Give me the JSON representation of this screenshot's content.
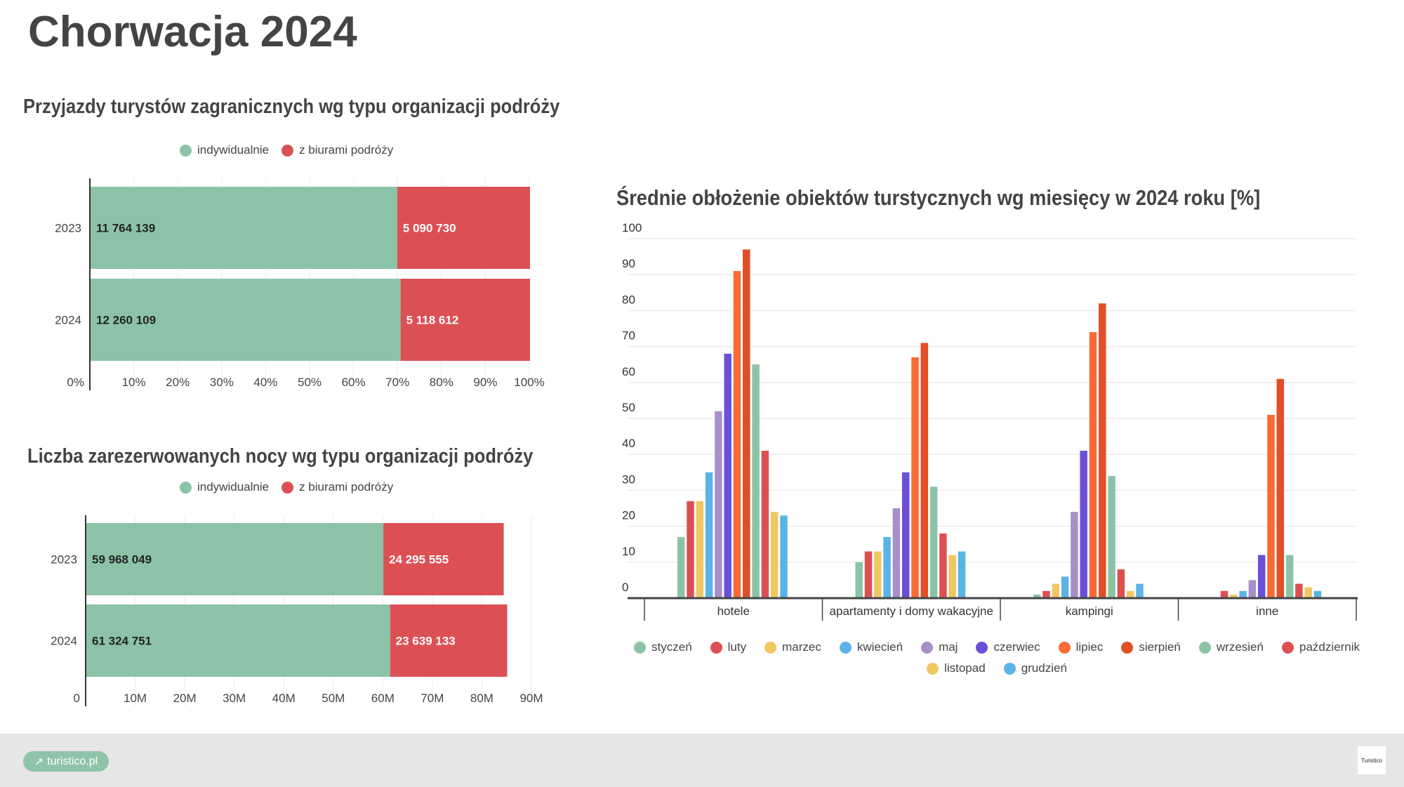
{
  "title": "Chorwacja 2024",
  "watermark": "Turistico",
  "footer": {
    "link_label": "turistico.pl",
    "logo_text": "Turistico"
  },
  "colors": {
    "indywidualnie": "#8cc3a6",
    "biura": "#dc5054"
  },
  "chart_data": [
    {
      "type": "bar",
      "orientation": "horizontal",
      "stacked": true,
      "normalized": true,
      "title": "Przyjazdy turystów zagranicznych wg typu organizacji podróży",
      "legend": [
        "indywidualnie",
        "z biurami podróży"
      ],
      "legend_position": "top",
      "categories": [
        "2023",
        "2024"
      ],
      "series": [
        {
          "name": "indywidualnie",
          "values": [
            11764139,
            12260109
          ],
          "labels": [
            "11 764 139",
            "12 260 109"
          ]
        },
        {
          "name": "z biurami podróży",
          "values": [
            5090730,
            5118612
          ],
          "labels": [
            "5 090 730",
            "5 118 612"
          ]
        }
      ],
      "xticks": [
        "0%",
        "10%",
        "20%",
        "30%",
        "40%",
        "50%",
        "60%",
        "70%",
        "80%",
        "90%",
        "100%"
      ]
    },
    {
      "type": "bar",
      "orientation": "horizontal",
      "stacked": true,
      "title": "Liczba zarezerwowanych nocy wg typu organizacji podróży",
      "legend": [
        "indywidualnie",
        "z biurami podróży"
      ],
      "legend_position": "top",
      "categories": [
        "2023",
        "2024"
      ],
      "series": [
        {
          "name": "indywidualnie",
          "values": [
            59968049,
            61324751
          ],
          "labels": [
            "59 968 049",
            "61 324 751"
          ]
        },
        {
          "name": "z biurami podróży",
          "values": [
            24295555,
            23639133
          ],
          "labels": [
            "24 295 555",
            "23 639 133"
          ]
        }
      ],
      "xlim": [
        0,
        90000000
      ],
      "xticks": [
        "0",
        "10M",
        "20M",
        "30M",
        "40M",
        "50M",
        "60M",
        "70M",
        "80M",
        "90M"
      ]
    },
    {
      "type": "bar",
      "grouped": true,
      "title": "Średnie obłożenie obiektów turstycznych wg miesięcy w 2024 roku [%]",
      "categories": [
        "hotele",
        "apartamenty i domy wakacyjne",
        "kampingi",
        "inne"
      ],
      "ylim": [
        0,
        100
      ],
      "yticks": [
        "0",
        "10",
        "20",
        "30",
        "40",
        "50",
        "60",
        "70",
        "80",
        "90",
        "100"
      ],
      "legend_position": "bottom",
      "series": [
        {
          "name": "styczeń",
          "color": "#8cc3a6",
          "values": [
            17,
            10,
            1,
            0
          ]
        },
        {
          "name": "luty",
          "color": "#dc5054",
          "values": [
            27,
            13,
            2,
            2
          ]
        },
        {
          "name": "marzec",
          "color": "#f0c862",
          "values": [
            27,
            13,
            4,
            1
          ]
        },
        {
          "name": "kwiecień",
          "color": "#5ab4e5",
          "values": [
            35,
            17,
            6,
            2
          ]
        },
        {
          "name": "maj",
          "color": "#a98fc9",
          "values": [
            52,
            25,
            24,
            5
          ]
        },
        {
          "name": "czerwiec",
          "color": "#6b4fd8",
          "values": [
            68,
            35,
            41,
            12
          ]
        },
        {
          "name": "lipiec",
          "color": "#f96a35",
          "values": [
            91,
            67,
            74,
            51
          ]
        },
        {
          "name": "sierpień",
          "color": "#e24e26",
          "values": [
            97,
            71,
            82,
            61
          ]
        },
        {
          "name": "wrzesień",
          "color": "#8cc3a6",
          "values": [
            65,
            31,
            34,
            12
          ]
        },
        {
          "name": "październik",
          "color": "#dc5054",
          "values": [
            41,
            18,
            8,
            4
          ]
        },
        {
          "name": "listopad",
          "color": "#f0c862",
          "values": [
            24,
            12,
            2,
            3
          ]
        },
        {
          "name": "grudzień",
          "color": "#5ab4e5",
          "values": [
            23,
            13,
            4,
            2
          ]
        }
      ]
    }
  ]
}
